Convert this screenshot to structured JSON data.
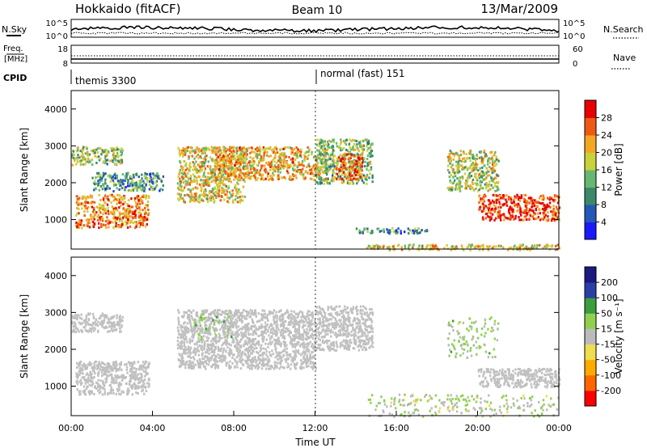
{
  "header": {
    "station": "Hokkaido (fitACF)",
    "beam": "Beam 10",
    "date": "13/Mar/2009"
  },
  "top_panels": {
    "nsky_label": "N.Sky",
    "nsearch_label": "N.Search",
    "nsky_ticks": [
      "10^5",
      "10^0"
    ],
    "nsearch_ticks": [
      "10^5",
      "10^0"
    ],
    "freq_label_1": "Freq.",
    "freq_label_2": "[MHz]",
    "freq_ticks": [
      "18",
      "8"
    ],
    "nave_label": "Nave",
    "nave_ticks": [
      "60",
      "0"
    ],
    "cpid_label": "CPID",
    "cpid_modes": [
      {
        "name": "themis 3300",
        "start_hour": 0
      },
      {
        "name": "normal (fast) 151",
        "start_hour": 12
      }
    ]
  },
  "colors": {
    "power_scale": [
      "#1a1aff",
      "#2357b8",
      "#3a8a6a",
      "#66b870",
      "#c8d23a",
      "#f5a623",
      "#ee5a12",
      "#e80000"
    ],
    "velocity_scale": [
      "#ff0000",
      "#ff6600",
      "#ffaa00",
      "#f0dc50",
      "#bbbbbb",
      "#8fd14f",
      "#3c9d3c",
      "#2a3fa6",
      "#1a1a80"
    ],
    "velocity_ground": "#c0c0c0"
  },
  "chart_data": [
    {
      "type": "heatmap",
      "panel": "power",
      "xlabel": "",
      "ylabel": "Slant Range [km]",
      "x_range_hours": [
        0,
        24
      ],
      "ylim": [
        200,
        4500
      ],
      "y_ticks": [
        "4000",
        "3000",
        "2000",
        "1000"
      ],
      "colorbar": {
        "label": "Power [dB]",
        "ticks": [
          "28",
          "24",
          "20",
          "16",
          "12",
          "8",
          "4"
        ],
        "range": [
          0,
          30
        ]
      },
      "echo_regions": [
        {
          "t": [
            0.2,
            3.8
          ],
          "r": [
            800,
            1700
          ],
          "value": 22
        },
        {
          "t": [
            0.0,
            2.5
          ],
          "r": [
            2500,
            3000
          ],
          "value": 14
        },
        {
          "t": [
            1.0,
            4.5
          ],
          "r": [
            1800,
            2300
          ],
          "value": 10
        },
        {
          "t": [
            5.2,
            8.5
          ],
          "r": [
            1500,
            3000
          ],
          "value": 18
        },
        {
          "t": [
            7.0,
            12.5
          ],
          "r": [
            2100,
            3000
          ],
          "value": 20
        },
        {
          "t": [
            12.0,
            14.8
          ],
          "r": [
            2000,
            3200
          ],
          "value": 14
        },
        {
          "t": [
            13.0,
            14.3
          ],
          "r": [
            2100,
            2800
          ],
          "value": 24
        },
        {
          "t": [
            14.0,
            17.5
          ],
          "r": [
            650,
            800
          ],
          "value": 10
        },
        {
          "t": [
            18.5,
            21.0
          ],
          "r": [
            1800,
            2900
          ],
          "value": 16
        },
        {
          "t": [
            20.0,
            24.0
          ],
          "r": [
            1000,
            1700
          ],
          "value": 26
        },
        {
          "t": [
            14.5,
            24.0
          ],
          "r": [
            200,
            350
          ],
          "value": 18
        }
      ]
    },
    {
      "type": "heatmap",
      "panel": "velocity",
      "xlabel": "Time UT",
      "ylabel": "Slant Range [km]",
      "x_range_hours": [
        0,
        24
      ],
      "ylim": [
        200,
        4500
      ],
      "x_ticks": [
        "00:00",
        "04:00",
        "08:00",
        "12:00",
        "16:00",
        "20:00",
        "00:00"
      ],
      "y_ticks": [
        "4000",
        "3000",
        "2000",
        "1000"
      ],
      "colorbar": {
        "label": "Velocity [m s⁻¹]",
        "ticks": [
          "200",
          "100",
          "50",
          "15",
          "-15",
          "-50",
          "-100",
          "-200"
        ],
        "range": [
          -250,
          250
        ]
      },
      "ground_scatter_regions": [
        {
          "t": [
            0.2,
            3.8
          ],
          "r": [
            800,
            1700
          ]
        },
        {
          "t": [
            0.0,
            2.5
          ],
          "r": [
            2500,
            3000
          ]
        },
        {
          "t": [
            5.2,
            12.0
          ],
          "r": [
            1500,
            3100
          ]
        },
        {
          "t": [
            12.0,
            14.8
          ],
          "r": [
            2000,
            3200
          ]
        },
        {
          "t": [
            20.0,
            24.0
          ],
          "r": [
            1000,
            1500
          ]
        }
      ],
      "ionospheric_regions": [
        {
          "t": [
            6.0,
            8.0
          ],
          "r": [
            2300,
            3000
          ],
          "value": 40
        },
        {
          "t": [
            18.5,
            21.0
          ],
          "r": [
            1800,
            2900
          ],
          "value": 30
        },
        {
          "t": [
            14.5,
            24.0
          ],
          "r": [
            200,
            800
          ],
          "value": 20
        }
      ]
    }
  ]
}
